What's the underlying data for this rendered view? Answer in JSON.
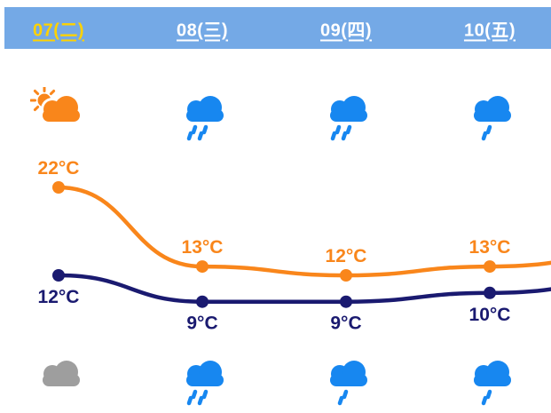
{
  "colors": {
    "header_bg": "#74a9e6",
    "day_text": "#ffffff",
    "selected_day": "#ffd200",
    "high_line": "#f9861b",
    "low_line": "#1a1a70",
    "rain_blue": "#1787f0",
    "cloud_gray": "#9e9e9e",
    "background": "#ffffff"
  },
  "header": {
    "days": [
      {
        "label": "07(二)",
        "selected": true
      },
      {
        "label": "08(三)",
        "selected": false
      },
      {
        "label": "09(四)",
        "selected": false
      },
      {
        "label": "10(五)",
        "selected": false
      }
    ]
  },
  "day_icons": [
    {
      "name": "sun-cloud-icon",
      "type": "sun-cloud",
      "meaning": "partly cloudy"
    },
    {
      "name": "rain-icon",
      "type": "rain-heavy",
      "meaning": "rain"
    },
    {
      "name": "rain-icon",
      "type": "rain-heavy",
      "meaning": "rain"
    },
    {
      "name": "light-rain-icon",
      "type": "rain-light",
      "meaning": "light rain"
    }
  ],
  "night_icons": [
    {
      "name": "cloud-icon",
      "type": "cloud",
      "meaning": "cloudy"
    },
    {
      "name": "rain-icon",
      "type": "rain-heavy",
      "meaning": "rain"
    },
    {
      "name": "light-rain-icon",
      "type": "rain-light",
      "meaning": "light rain"
    },
    {
      "name": "light-rain-icon",
      "type": "rain-light",
      "meaning": "light rain"
    }
  ],
  "chart_data": {
    "type": "line",
    "categories": [
      "07(二)",
      "08(三)",
      "09(四)",
      "10(五)"
    ],
    "series": [
      {
        "name": "high",
        "values": [
          22,
          13,
          12,
          13
        ],
        "labels": [
          "22°C",
          "13°C",
          "12°C",
          "13°C"
        ],
        "unit": "°C",
        "color": "#f9861b",
        "label_position": "above"
      },
      {
        "name": "low",
        "values": [
          12,
          9,
          9,
          10
        ],
        "labels": [
          "12°C",
          "9°C",
          "9°C",
          "10°C"
        ],
        "unit": "°C",
        "color": "#1a1a70",
        "label_position": "below"
      }
    ],
    "grid": false,
    "legend": "none",
    "markers": true,
    "ylim_degC": [
      6,
      25
    ]
  }
}
